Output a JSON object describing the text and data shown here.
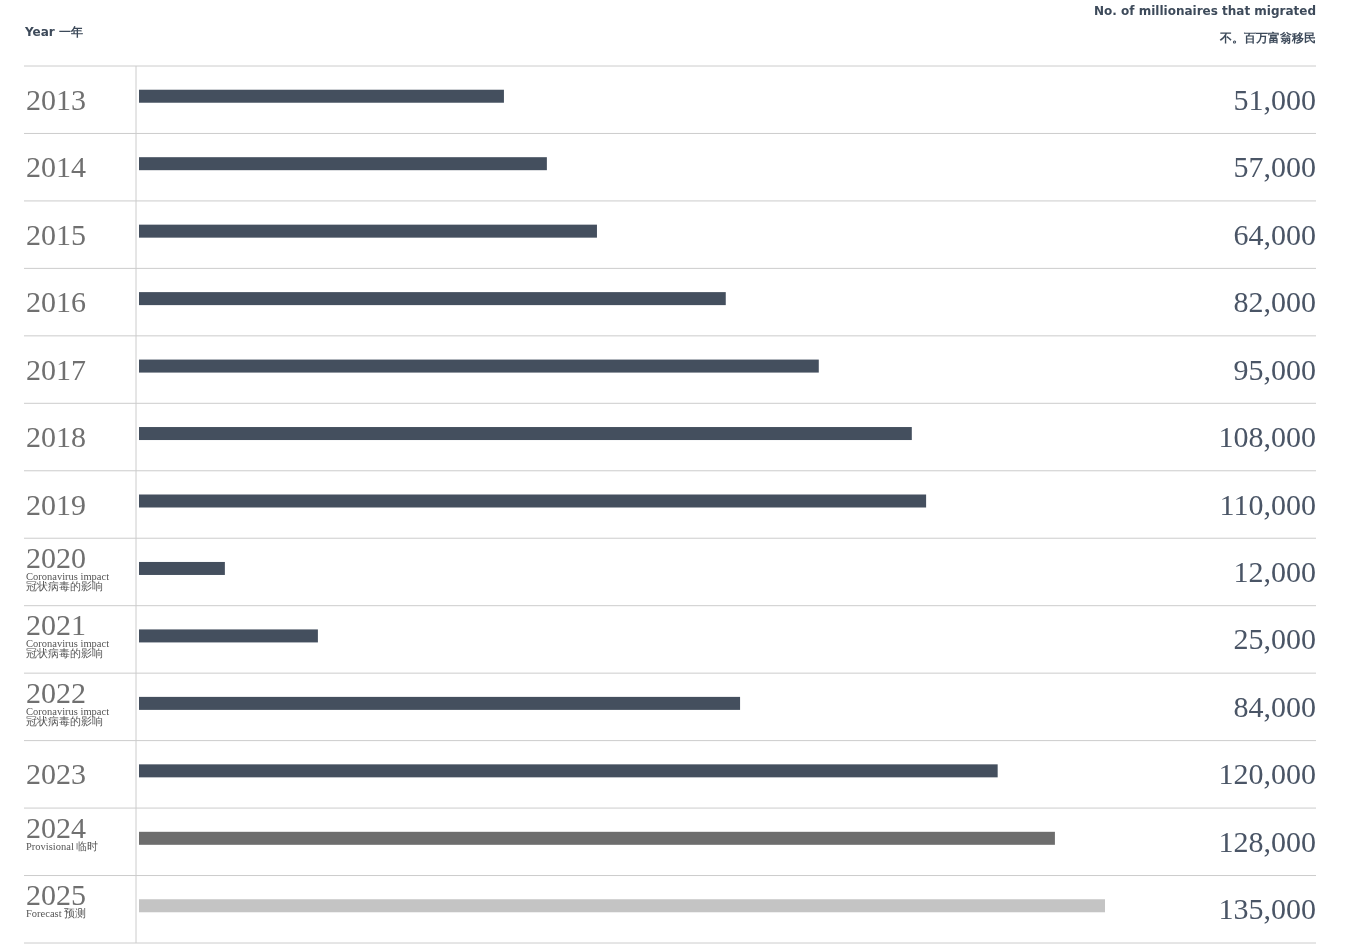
{
  "chart_data": {
    "type": "bar",
    "orientation": "horizontal",
    "ylabel": "Year 一年",
    "xlabel": "No. of millionaires that migrated 不。百万富翁移民",
    "categories": [
      "2013",
      "2014",
      "2015",
      "2016",
      "2017",
      "2018",
      "2019",
      "2020 Coronavirus impact 冠状病毒的影响",
      "2021 Coronavirus impact 冠状病毒的影响",
      "2022 Coronavirus impact 冠状病毒的影响",
      "2023",
      "2024 Provisional 临时",
      "2025 Forecast 预测"
    ],
    "values": [
      51000,
      57000,
      64000,
      82000,
      95000,
      108000,
      110000,
      12000,
      25000,
      84000,
      120000,
      128000,
      135000
    ],
    "value_labels": [
      "51,000",
      "57,000",
      "64,000",
      "82,000",
      "95,000",
      "108,000",
      "110,000",
      "12,000",
      "25,000",
      "84,000",
      "120,000",
      "128,000",
      "135,000"
    ],
    "colors": [
      "#444f5e",
      "#444f5e",
      "#444f5e",
      "#444f5e",
      "#444f5e",
      "#444f5e",
      "#444f5e",
      "#444f5e",
      "#444f5e",
      "#444f5e",
      "#444f5e",
      "#6d6d6d",
      "#c4c4c4"
    ]
  }
}
